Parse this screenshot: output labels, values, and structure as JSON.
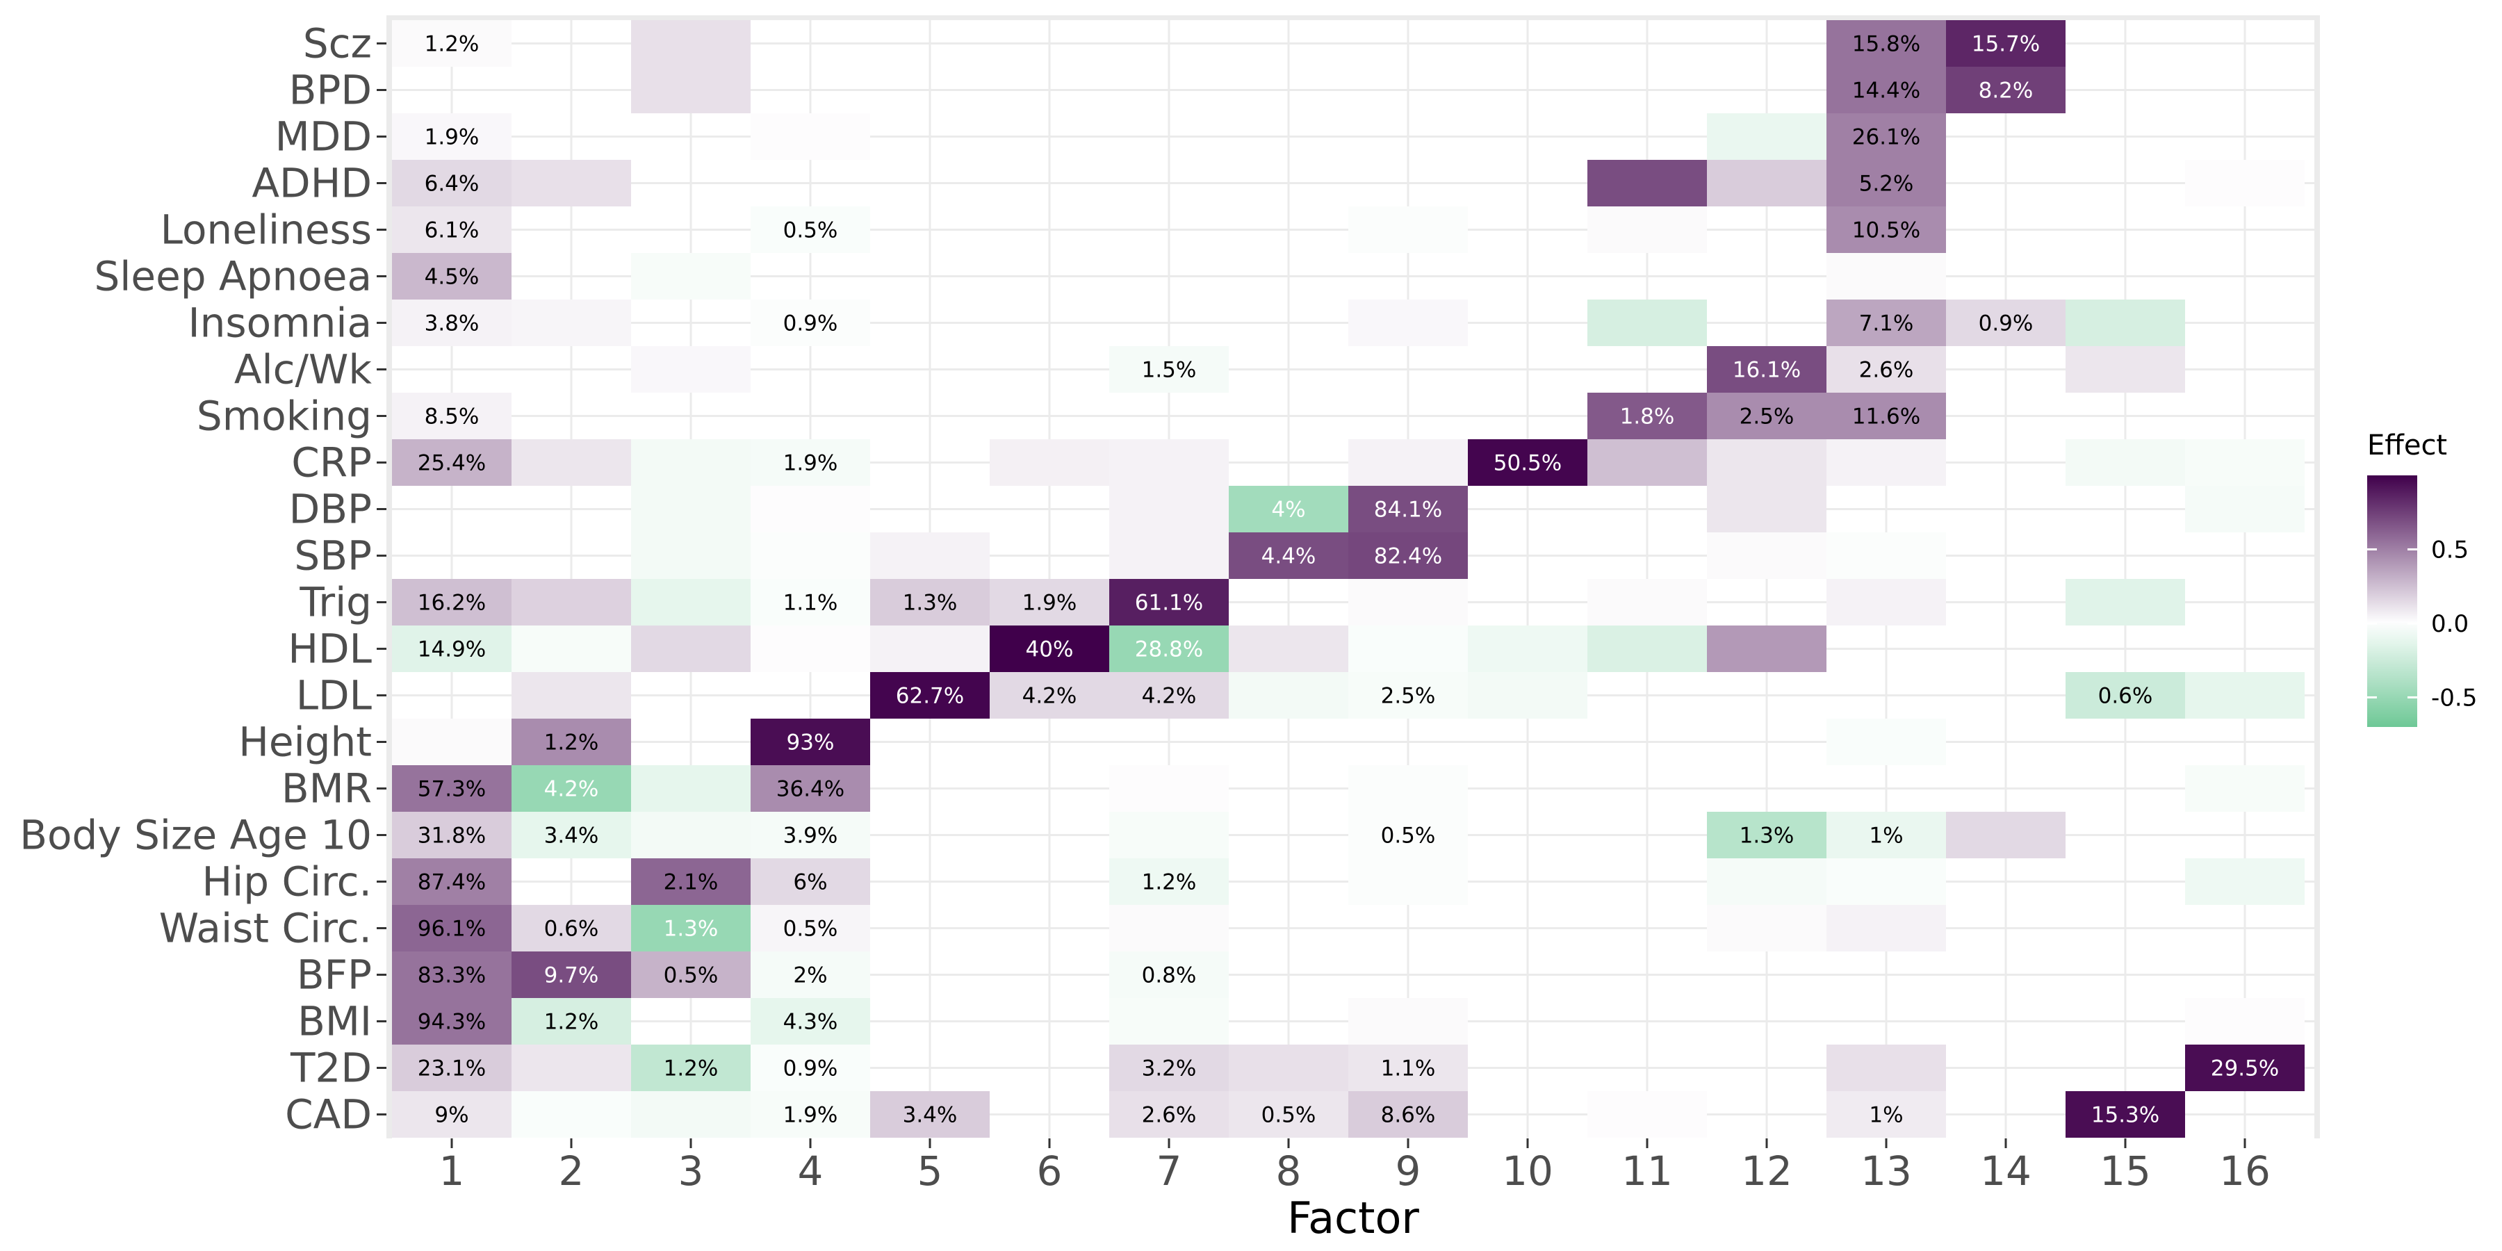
{
  "chart_data": {
    "type": "heatmap",
    "xlabel": "Factor",
    "ylabel": "",
    "factors": [
      "1",
      "2",
      "3",
      "4",
      "5",
      "6",
      "7",
      "8",
      "9",
      "10",
      "11",
      "12",
      "13",
      "14",
      "15",
      "16"
    ],
    "traits": [
      "Scz",
      "BPD",
      "MDD",
      "ADHD",
      "Loneliness",
      "Sleep Apnoea",
      "Insomnia",
      "Alc/Wk",
      "Smoking",
      "CRP",
      "DBP",
      "SBP",
      "Trig",
      "HDL",
      "LDL",
      "Height",
      "BMR",
      "Body Size Age 10",
      "Hip Circ.",
      "Waist Circ.",
      "BFP",
      "BMI",
      "T2D",
      "CAD"
    ],
    "effects": [
      [
        0.02,
        0,
        0.12,
        0,
        0,
        0,
        0,
        0,
        0,
        0,
        0,
        0,
        0.55,
        0.85,
        0,
        0
      ],
      [
        0,
        0,
        0.12,
        0,
        0,
        0,
        0,
        0,
        0,
        0,
        0,
        0,
        0.55,
        0.75,
        0,
        0
      ],
      [
        0.03,
        0,
        0,
        0.01,
        0,
        0,
        0,
        0,
        0,
        0,
        0,
        -0.1,
        0.5,
        0,
        0,
        0
      ],
      [
        0.15,
        0.12,
        0,
        0,
        0,
        0,
        0,
        0,
        0,
        0,
        0.7,
        0.2,
        0.5,
        0,
        0,
        0.01
      ],
      [
        0.1,
        0,
        0,
        -0.03,
        0,
        0,
        0,
        0,
        -0.02,
        0,
        0.02,
        0,
        0.45,
        0,
        0,
        0
      ],
      [
        0.28,
        0,
        -0.04,
        0,
        0,
        0,
        0,
        0,
        0,
        0,
        0,
        0,
        0.02,
        0,
        0,
        0
      ],
      [
        0.05,
        0.04,
        0,
        -0.02,
        0,
        0,
        0,
        0,
        0.03,
        0,
        -0.2,
        0,
        0.35,
        0.15,
        -0.2,
        0
      ],
      [
        0,
        0,
        0.03,
        0,
        0,
        0,
        -0.05,
        0,
        0,
        0,
        0,
        0.7,
        0.12,
        0,
        0.1,
        0
      ],
      [
        0.05,
        0,
        0,
        0,
        0,
        0,
        0,
        0,
        0,
        0,
        0.65,
        0.45,
        0.45,
        0,
        0,
        0
      ],
      [
        0.3,
        0.1,
        -0.06,
        -0.05,
        0,
        0.06,
        0.05,
        0,
        0.05,
        0.98,
        0.25,
        0.1,
        0.05,
        0,
        -0.06,
        -0.04
      ],
      [
        0,
        0,
        -0.06,
        0.01,
        0,
        0,
        0.05,
        -0.45,
        0.7,
        0,
        0,
        0.1,
        0,
        0,
        0,
        -0.05
      ],
      [
        0,
        0,
        -0.06,
        -0.02,
        0.05,
        0,
        0.05,
        0.7,
        0.72,
        0,
        0,
        0.02,
        -0.02,
        0,
        0,
        0
      ],
      [
        0.25,
        0.18,
        -0.12,
        -0.03,
        0.2,
        0.15,
        0.88,
        0,
        0.02,
        0,
        0.02,
        0,
        0.05,
        0,
        -0.15,
        0
      ],
      [
        -0.15,
        -0.04,
        0.15,
        0.01,
        0.05,
        1.0,
        -0.5,
        0.1,
        -0.03,
        -0.08,
        -0.18,
        0.4,
        0,
        0,
        0,
        0
      ],
      [
        0,
        0.1,
        0,
        0,
        0.98,
        0.15,
        0.15,
        -0.06,
        -0.04,
        -0.06,
        0,
        0,
        0,
        0,
        -0.25,
        -0.12
      ],
      [
        0.02,
        0.45,
        0,
        0.95,
        0,
        0,
        0,
        0,
        0,
        0,
        0,
        0,
        -0.03,
        0,
        0,
        0
      ],
      [
        0.55,
        -0.5,
        -0.12,
        0.45,
        0,
        0,
        0.01,
        0,
        -0.02,
        0,
        0,
        0,
        0,
        0,
        0,
        -0.04
      ],
      [
        0.2,
        -0.12,
        -0.06,
        -0.05,
        0,
        0,
        -0.04,
        0,
        -0.02,
        0,
        0,
        -0.35,
        -0.1,
        0.15,
        0,
        0
      ],
      [
        0.5,
        0,
        0.6,
        0.15,
        0,
        0,
        -0.08,
        0,
        -0.02,
        0,
        0,
        -0.05,
        -0.03,
        0,
        0,
        -0.08
      ],
      [
        0.6,
        0.15,
        -0.5,
        0.04,
        0,
        0,
        0.02,
        0,
        0,
        0,
        0,
        0.02,
        0.05,
        0,
        0,
        0
      ],
      [
        0.55,
        0.7,
        0.3,
        -0.05,
        0,
        0,
        -0.05,
        0,
        0,
        0,
        0,
        0,
        0,
        0,
        0,
        0
      ],
      [
        0.55,
        -0.2,
        0,
        -0.12,
        0,
        0,
        -0.04,
        0,
        0.02,
        0,
        0,
        0,
        0,
        0,
        0,
        0.01
      ],
      [
        0.2,
        0.1,
        -0.3,
        -0.03,
        0,
        0,
        0.15,
        0.12,
        0.1,
        0,
        0,
        0,
        0.12,
        0,
        0,
        0.95
      ],
      [
        0.1,
        -0.03,
        -0.06,
        -0.04,
        0.2,
        0,
        0.12,
        0.1,
        0.2,
        0,
        0.01,
        0,
        0.08,
        0,
        0.95,
        0
      ]
    ],
    "labels": [
      [
        "1.2%",
        "",
        "",
        "",
        "",
        "",
        "",
        "",
        "",
        "",
        "",
        "",
        "15.8%",
        "15.7%",
        "",
        ""
      ],
      [
        "",
        "",
        "",
        "",
        "",
        "",
        "",
        "",
        "",
        "",
        "",
        "",
        "14.4%",
        "8.2%",
        "",
        ""
      ],
      [
        "1.9%",
        "",
        "",
        "",
        "",
        "",
        "",
        "",
        "",
        "",
        "",
        "",
        "26.1%",
        "",
        "",
        ""
      ],
      [
        "6.4%",
        "",
        "",
        "",
        "",
        "",
        "",
        "",
        "",
        "",
        "",
        "",
        "5.2%",
        "",
        "",
        ""
      ],
      [
        "6.1%",
        "",
        "",
        "0.5%",
        "",
        "",
        "",
        "",
        "",
        "",
        "",
        "",
        "10.5%",
        "",
        "",
        ""
      ],
      [
        "4.5%",
        "",
        "",
        "",
        "",
        "",
        "",
        "",
        "",
        "",
        "",
        "",
        "",
        "",
        "",
        ""
      ],
      [
        "3.8%",
        "",
        "",
        "0.9%",
        "",
        "",
        "",
        "",
        "",
        "",
        "",
        "",
        "7.1%",
        "0.9%",
        "",
        ""
      ],
      [
        "",
        "",
        "",
        "",
        "",
        "",
        "1.5%",
        "",
        "",
        "",
        "",
        "16.1%",
        "2.6%",
        "",
        "",
        ""
      ],
      [
        "8.5%",
        "",
        "",
        "",
        "",
        "",
        "",
        "",
        "",
        "",
        "1.8%",
        "2.5%",
        "11.6%",
        "",
        "",
        ""
      ],
      [
        "25.4%",
        "",
        "",
        "1.9%",
        "",
        "",
        "",
        "",
        "",
        "50.5%",
        "",
        "",
        "",
        "",
        "",
        ""
      ],
      [
        "",
        "",
        "",
        "",
        "",
        "",
        "",
        "4%",
        "84.1%",
        "",
        "",
        "",
        "",
        "",
        "",
        ""
      ],
      [
        "",
        "",
        "",
        "",
        "",
        "",
        "",
        "4.4%",
        "82.4%",
        "",
        "",
        "",
        "",
        "",
        "",
        ""
      ],
      [
        "16.2%",
        "",
        "",
        "1.1%",
        "1.3%",
        "1.9%",
        "61.1%",
        "",
        "",
        "",
        "",
        "",
        "",
        "",
        "",
        ""
      ],
      [
        "14.9%",
        "",
        "",
        "",
        "",
        "40%",
        "28.8%",
        "",
        "",
        "",
        "",
        "",
        "",
        "",
        "",
        ""
      ],
      [
        "",
        "",
        "",
        "",
        "62.7%",
        "4.2%",
        "4.2%",
        "",
        "2.5%",
        "",
        "",
        "",
        "",
        "",
        "0.6%",
        ""
      ],
      [
        "",
        "1.2%",
        "",
        "93%",
        "",
        "",
        "",
        "",
        "",
        "",
        "",
        "",
        "",
        "",
        "",
        ""
      ],
      [
        "57.3%",
        "4.2%",
        "",
        "36.4%",
        "",
        "",
        "",
        "",
        "",
        "",
        "",
        "",
        "",
        "",
        "",
        ""
      ],
      [
        "31.8%",
        "3.4%",
        "",
        "3.9%",
        "",
        "",
        "",
        "",
        "0.5%",
        "",
        "",
        "1.3%",
        "1%",
        "",
        "",
        ""
      ],
      [
        "87.4%",
        "",
        "2.1%",
        "6%",
        "",
        "",
        "1.2%",
        "",
        "",
        "",
        "",
        "",
        "",
        "",
        "",
        ""
      ],
      [
        "96.1%",
        "0.6%",
        "1.3%",
        "0.5%",
        "",
        "",
        "",
        "",
        "",
        "",
        "",
        "",
        "",
        "",
        "",
        ""
      ],
      [
        "83.3%",
        "9.7%",
        "0.5%",
        "2%",
        "",
        "",
        "0.8%",
        "",
        "",
        "",
        "",
        "",
        "",
        "",
        "",
        ""
      ],
      [
        "94.3%",
        "1.2%",
        "",
        "4.3%",
        "",
        "",
        "",
        "",
        "",
        "",
        "",
        "",
        "",
        "",
        "",
        ""
      ],
      [
        "23.1%",
        "",
        "1.2%",
        "0.9%",
        "",
        "",
        "3.2%",
        "",
        "1.1%",
        "",
        "",
        "",
        "",
        "",
        "",
        "29.5%"
      ],
      [
        "9%",
        "",
        "",
        "1.9%",
        "3.4%",
        "",
        "2.6%",
        "0.5%",
        "8.6%",
        "",
        "",
        "",
        "1%",
        "",
        "15.3%",
        ""
      ]
    ],
    "legend": {
      "title": "Effect",
      "ticks": [
        "0.5",
        "0.0",
        "-0.5"
      ],
      "range": [
        -0.7,
        1.0
      ]
    },
    "grid": true
  }
}
